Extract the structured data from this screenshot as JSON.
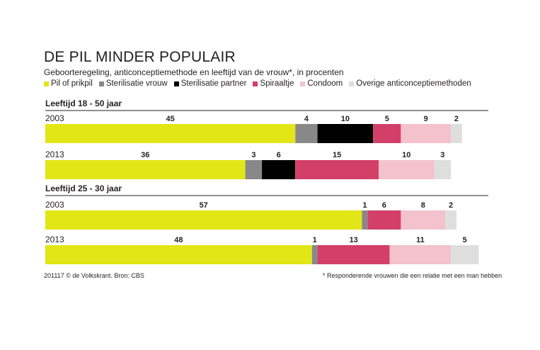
{
  "header": {
    "title": "DE PIL MINDER POPULAIR",
    "subtitle": "Geboorteregeling, anticonceptiemethode en leeftijd van de vrouw*, in procenten"
  },
  "legend": [
    {
      "label": "Pil of prikpil",
      "color": "#e2e617"
    },
    {
      "label": "Sterilisatie vrouw",
      "color": "#888889"
    },
    {
      "label": "Sterilisatie partner",
      "color": "#000000"
    },
    {
      "label": "Spiraaltje",
      "color": "#d2406a"
    },
    {
      "label": "Condoom",
      "color": "#f3c2cc"
    },
    {
      "label": "Overige anticonceptiemethoden",
      "color": "#dfdedf"
    }
  ],
  "footer": {
    "source": "201117 © de Volkskrant. Bron: CBS",
    "note": "* Responderende vrouwen die een relatie met een man hebben"
  },
  "chart_data": {
    "type": "bar",
    "stacked": true,
    "orientation": "horizontal",
    "series_names": [
      "Pil of prikpil",
      "Sterilisatie vrouw",
      "Sterilisatie partner",
      "Spiraaltje",
      "Condoom",
      "Overige anticonceptiemethoden"
    ],
    "colors": [
      "#e2e617",
      "#888889",
      "#000000",
      "#d2406a",
      "#f3c2cc",
      "#dfdedf"
    ],
    "groups": [
      {
        "label": "Leeftijd 18 - 50 jaar",
        "rows": [
          {
            "year": "2003",
            "values": [
              45,
              4,
              10,
              5,
              9,
              2
            ]
          },
          {
            "year": "2013",
            "values": [
              36,
              3,
              6,
              15,
              10,
              3
            ]
          }
        ]
      },
      {
        "label": "Leeftijd 25 - 30 jaar",
        "rows": [
          {
            "year": "2003",
            "values": [
              57,
              1,
              0,
              6,
              8,
              2
            ]
          },
          {
            "year": "2013",
            "values": [
              48,
              1,
              0,
              13,
              11,
              5
            ]
          }
        ]
      }
    ]
  }
}
